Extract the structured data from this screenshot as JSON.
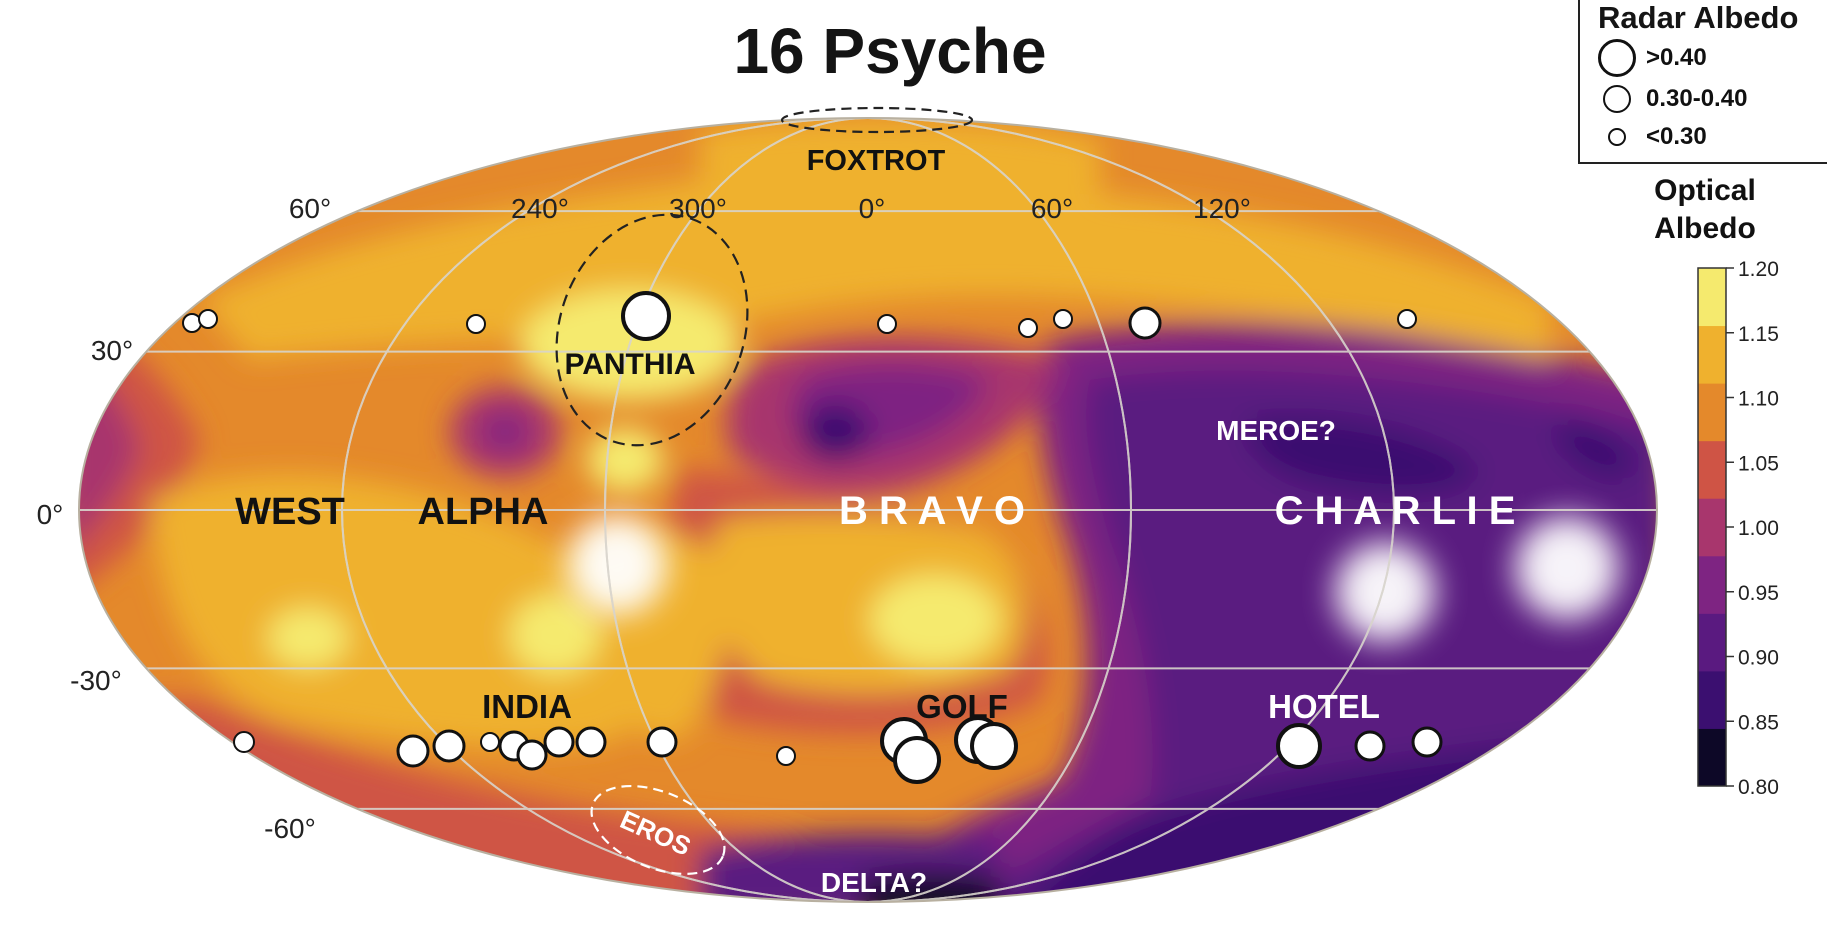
{
  "title": "16 Psyche",
  "legend": {
    "title": "Radar Albedo",
    "items": [
      {
        "label": ">0.40",
        "size": "large"
      },
      {
        "label": "0.30-0.40",
        "size": "medium"
      },
      {
        "label": "<0.30",
        "size": "small"
      }
    ]
  },
  "colorbar": {
    "title_line1": "Optical",
    "title_line2": "Albedo",
    "ticks": [
      "0.80",
      "0.85",
      "0.90",
      "0.95",
      "1.00",
      "1.05",
      "1.10",
      "1.15",
      "1.20"
    ],
    "colors": [
      "#0d0827",
      "#3b0f70",
      "#5a1a80",
      "#7e2482",
      "#a8366d",
      "#cf5445",
      "#e4892b",
      "#efb12e",
      "#f5ea6e"
    ]
  },
  "axis_labels": {
    "lon": [
      "60°",
      "240°",
      "300°",
      "0°",
      "60°",
      "120°"
    ],
    "lat": [
      "30°",
      "0°",
      "-30°",
      "-60°"
    ]
  },
  "regions": {
    "foxtrot": "FOXTROT",
    "panthia": "PANTHIA",
    "west": "WEST",
    "alpha": "ALPHA",
    "bravo": "B R A V O",
    "charlie": "C H A R L I E",
    "meroe": "MEROE?",
    "india": "INDIA",
    "golf": "GOLF",
    "hotel": "HOTEL",
    "eros": "EROS",
    "delta": "DELTA?"
  },
  "colors": {
    "background": "#ffffff",
    "gridline": "#d8d4cc",
    "dark_text": "#111111",
    "light_text": "#ffffff"
  }
}
